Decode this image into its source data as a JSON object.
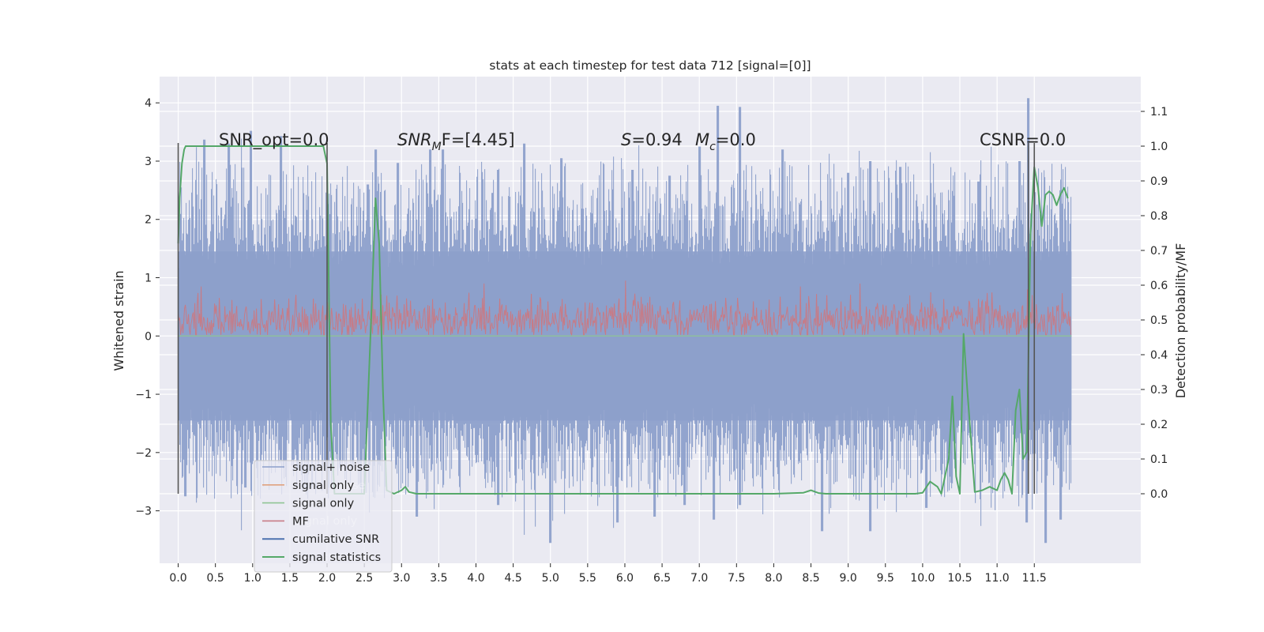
{
  "chart_data": {
    "type": "line",
    "title": "stats at each timestep for test data 712 [signal=[0]]",
    "xlabel": "",
    "ylabel_left": "Whitened strain",
    "ylabel_right": "Detection probability/MF",
    "xlim": [
      -0.25,
      12.93
    ],
    "ylim_left": [
      -3.9,
      4.45
    ],
    "ylim_right": [
      -0.2,
      1.2
    ],
    "x_ticks": [
      "0.0",
      "0.5",
      "1.0",
      "1.5",
      "2.0",
      "2.5",
      "3.0",
      "3.5",
      "4.0",
      "4.5",
      "5.0",
      "5.5",
      "6.0",
      "6.5",
      "7.0",
      "7.5",
      "8.0",
      "8.5",
      "9.0",
      "9.5",
      "10.0",
      "10.5",
      "11.0",
      "11.5"
    ],
    "y_ticks_left": [
      "4",
      "3",
      "2",
      "1",
      "0",
      "−1",
      "−2",
      "−3"
    ],
    "y_ticks_right": [
      "1.1",
      "1.0",
      "0.9",
      "0.8",
      "0.7",
      "0.6",
      "0.5",
      "0.4",
      "0.3",
      "0.2",
      "0.1",
      "0.0"
    ],
    "grid": true,
    "legend_position": "lower-left",
    "annotations": {
      "snr_opt": "SNR_opt=0.0",
      "snr_mf_main": "SNR",
      "snr_mf_sub": "M",
      "snr_mf_rest": "F=[4.45]",
      "s_main": "S",
      "s_rest": "=0.94",
      "mc_main": "M",
      "mc_sub": "c",
      "mc_rest": "=0.0",
      "csnr": "CSNR=0.0"
    },
    "legend": [
      {
        "label": "signal+ noise",
        "color": "#8da0cb"
      },
      {
        "label": "signal only",
        "color": "#e0a27f"
      },
      {
        "label": "signal only",
        "color": "#8fc494"
      },
      {
        "label": "MF",
        "color": "#c77b86"
      },
      {
        "label": "cumilative SNR",
        "color": "#4c72b0"
      },
      {
        "label": "signal statistics",
        "color": "#55a868"
      }
    ],
    "legend_shadow_text": [
      "noise",
      "signal only",
      "statistics"
    ],
    "series": [
      {
        "name": "signal+ noise",
        "axis": "left",
        "color": "#8da0cb",
        "x_range": [
          0.0,
          12.0
        ],
        "typical_band": [
          -1.9,
          1.9
        ],
        "peaks_up": [
          [
            0.35,
            3.37
          ],
          [
            0.68,
            3.3
          ],
          [
            0.98,
            3.52
          ],
          [
            1.38,
            3.43
          ],
          [
            2.55,
            2.6
          ],
          [
            2.65,
            3.2
          ],
          [
            2.95,
            2.97
          ],
          [
            3.38,
            3.2
          ],
          [
            3.55,
            3.2
          ],
          [
            4.3,
            2.85
          ],
          [
            4.65,
            3.3
          ],
          [
            5.15,
            3.05
          ],
          [
            6.1,
            2.85
          ],
          [
            6.6,
            2.75
          ],
          [
            7.0,
            3.25
          ],
          [
            7.25,
            3.95
          ],
          [
            7.55,
            3.93
          ],
          [
            8.12,
            3.2
          ],
          [
            9.0,
            2.8
          ],
          [
            9.3,
            3.0
          ],
          [
            9.7,
            2.9
          ],
          [
            10.75,
            2.65
          ],
          [
            11.3,
            3.0
          ],
          [
            11.42,
            4.08
          ],
          [
            11.85,
            2.5
          ]
        ],
        "peaks_down": [
          [
            0.1,
            -2.75
          ],
          [
            0.9,
            -2.6
          ],
          [
            1.6,
            -2.3
          ],
          [
            2.45,
            -2.6
          ],
          [
            3.2,
            -3.1
          ],
          [
            4.3,
            -2.9
          ],
          [
            5.0,
            -3.55
          ],
          [
            5.9,
            -3.2
          ],
          [
            6.4,
            -3.1
          ],
          [
            6.8,
            -2.9
          ],
          [
            7.2,
            -3.15
          ],
          [
            7.55,
            -2.9
          ],
          [
            8.65,
            -3.35
          ],
          [
            9.3,
            -3.35
          ],
          [
            10.05,
            -2.95
          ],
          [
            11.4,
            -3.2
          ],
          [
            11.65,
            -3.55
          ],
          [
            11.85,
            -3.15
          ]
        ]
      },
      {
        "name": "MF",
        "axis": "left",
        "color": "#c77b86",
        "x_range": [
          0.0,
          12.0
        ],
        "baseline": 0.0,
        "typical_band": [
          0.0,
          0.6
        ],
        "peaks": [
          [
            0.3,
            0.85
          ],
          [
            2.6,
            1.0
          ],
          [
            4.1,
            0.9
          ],
          [
            6.0,
            0.95
          ],
          [
            8.35,
            0.85
          ],
          [
            9.15,
            0.9
          ],
          [
            10.1,
            0.75
          ],
          [
            11.4,
            0.8
          ]
        ]
      },
      {
        "name": "signal statistics",
        "axis": "right",
        "color": "#55a868",
        "x": [
          0.0,
          0.02,
          0.05,
          0.08,
          0.1,
          1.95,
          2.0,
          2.05,
          2.1,
          2.2,
          2.3,
          2.4,
          2.5,
          2.6,
          2.65,
          2.7,
          2.75,
          2.8,
          2.9,
          3.0,
          3.05,
          3.1,
          3.2,
          3.3,
          4.0,
          5.0,
          6.0,
          7.0,
          8.0,
          8.4,
          8.5,
          8.6,
          8.7,
          9.0,
          9.5,
          9.9,
          10.0,
          10.1,
          10.2,
          10.25,
          10.3,
          10.35,
          10.4,
          10.45,
          10.5,
          10.55,
          10.6,
          10.7,
          10.8,
          10.9,
          11.0,
          11.05,
          11.1,
          11.15,
          11.2,
          11.25,
          11.3,
          11.35,
          11.4,
          11.45,
          11.5,
          11.55,
          11.6,
          11.65,
          11.7,
          11.75,
          11.8,
          11.85,
          11.9,
          11.95
        ],
        "y": [
          0.72,
          0.85,
          0.95,
          0.99,
          1.0,
          1.0,
          0.95,
          0.2,
          0.0,
          0.0,
          0.0,
          0.0,
          0.0,
          0.55,
          0.85,
          0.72,
          0.3,
          0.01,
          0.0,
          0.01,
          0.02,
          0.005,
          0.0,
          0.0,
          0.0,
          0.0,
          0.0,
          0.0,
          0.0,
          0.003,
          0.01,
          0.002,
          0.0,
          0.0,
          0.0,
          0.0,
          0.003,
          0.035,
          0.02,
          0.0,
          0.05,
          0.1,
          0.28,
          0.05,
          0.0,
          0.46,
          0.3,
          0.005,
          0.01,
          0.02,
          0.01,
          0.04,
          0.06,
          0.04,
          0.0,
          0.24,
          0.3,
          0.1,
          0.12,
          0.75,
          0.94,
          0.88,
          0.77,
          0.86,
          0.87,
          0.86,
          0.83,
          0.86,
          0.88,
          0.85
        ]
      }
    ],
    "vertical_markers": [
      0.0,
      2.0,
      11.42,
      11.5
    ]
  }
}
